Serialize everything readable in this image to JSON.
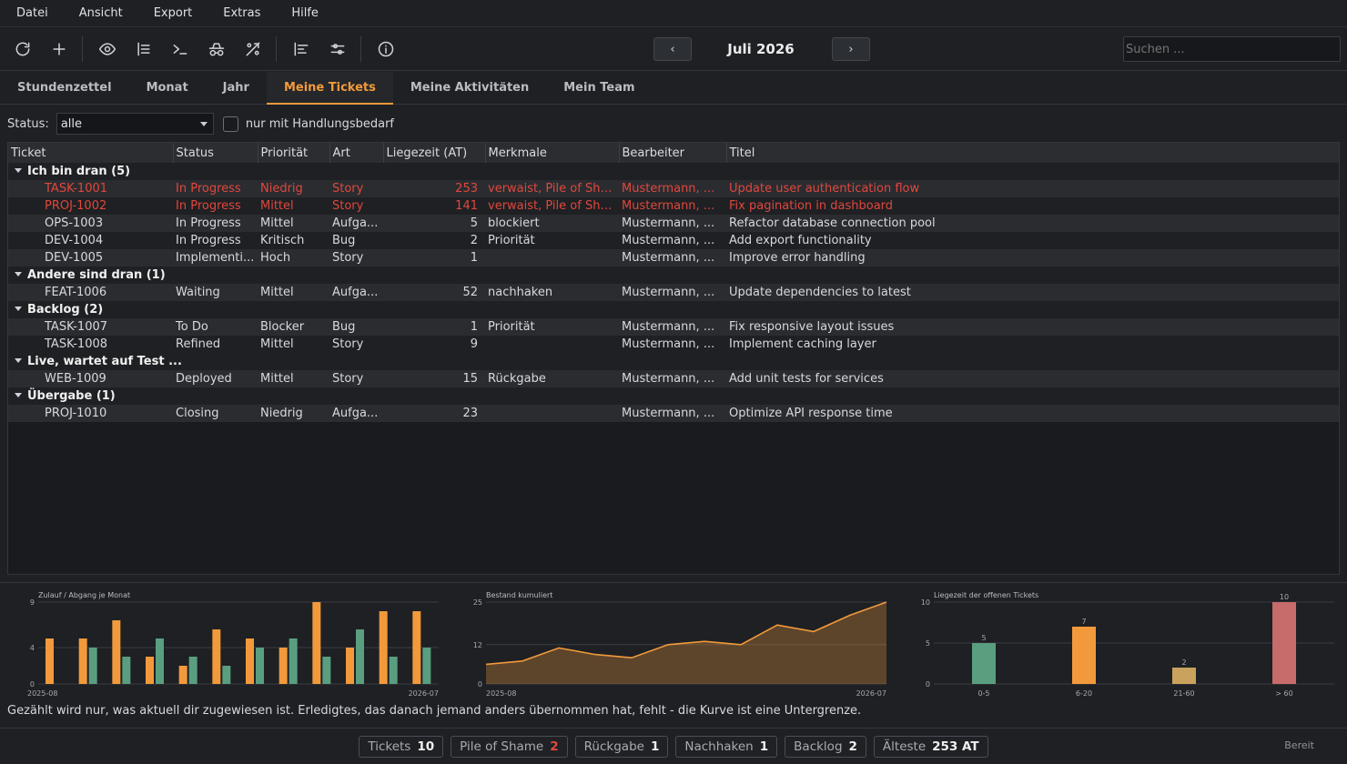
{
  "menu": [
    "Datei",
    "Ansicht",
    "Export",
    "Extras",
    "Hilfe"
  ],
  "toolbar_icons": [
    "refresh-icon",
    "plus-icon",
    "eye-icon",
    "list-icon",
    "terminal-icon",
    "incognito-icon",
    "no-sync-icon",
    "align-left-icon",
    "sliders-icon",
    "info-icon"
  ],
  "nav": {
    "prev": "‹",
    "next": "›",
    "month": "Juli 2026"
  },
  "search": {
    "placeholder": "Suchen ..."
  },
  "tabs": [
    "Stundenzettel",
    "Monat",
    "Jahr",
    "Meine Tickets",
    "Meine Aktivitäten",
    "Mein Team"
  ],
  "active_tab": "Meine Tickets",
  "filter": {
    "label": "Status:",
    "value": "alle",
    "checkbox_label": "nur mit Handlungsbedarf"
  },
  "columns": [
    "Ticket",
    "Status",
    "Priorität",
    "Art",
    "Liegezeit (AT)",
    "Merkmale",
    "Bearbeiter",
    "Titel"
  ],
  "groups": [
    {
      "title": "Ich bin dran  (5)",
      "rows": [
        {
          "ticket": "TASK-1001",
          "status": "In Progress",
          "prio": "Niedrig",
          "art": "Story",
          "age": "253",
          "merkmale": "verwaist, Pile of Sha...",
          "bearbeiter": "Mustermann, ...",
          "titel": "Update user authentication flow",
          "red": true
        },
        {
          "ticket": "PROJ-1002",
          "status": "In Progress",
          "prio": "Mittel",
          "art": "Story",
          "age": "141",
          "merkmale": "verwaist, Pile of Sha...",
          "bearbeiter": "Mustermann, ...",
          "titel": "Fix pagination in dashboard",
          "red": true
        },
        {
          "ticket": "OPS-1003",
          "status": "In Progress",
          "prio": "Mittel",
          "art": "Aufga...",
          "age": "5",
          "merkmale": "blockiert",
          "bearbeiter": "Mustermann, ...",
          "titel": "Refactor database connection pool",
          "red": false
        },
        {
          "ticket": "DEV-1004",
          "status": "In Progress",
          "prio": "Kritisch",
          "art": "Bug",
          "age": "2",
          "merkmale": "Priorität",
          "bearbeiter": "Mustermann, ...",
          "titel": "Add export functionality",
          "red": false
        },
        {
          "ticket": "DEV-1005",
          "status": "Implementi...",
          "prio": "Hoch",
          "art": "Story",
          "age": "1",
          "merkmale": "",
          "bearbeiter": "Mustermann, ...",
          "titel": "Improve error handling",
          "red": false
        }
      ]
    },
    {
      "title": "Andere sind dran  (1)",
      "rows": [
        {
          "ticket": "FEAT-1006",
          "status": "Waiting",
          "prio": "Mittel",
          "art": "Aufga...",
          "age": "52",
          "merkmale": "nachhaken",
          "bearbeiter": "Mustermann, ...",
          "titel": "Update dependencies to latest",
          "red": false
        }
      ]
    },
    {
      "title": "Backlog  (2)",
      "rows": [
        {
          "ticket": "TASK-1007",
          "status": "To Do",
          "prio": "Blocker",
          "art": "Bug",
          "age": "1",
          "merkmale": "Priorität",
          "bearbeiter": "Mustermann, ...",
          "titel": "Fix responsive layout issues",
          "red": false
        },
        {
          "ticket": "TASK-1008",
          "status": "Refined",
          "prio": "Mittel",
          "art": "Story",
          "age": "9",
          "merkmale": "",
          "bearbeiter": "Mustermann, ...",
          "titel": "Implement caching layer",
          "red": false
        }
      ]
    },
    {
      "title": "Live, wartet auf Test ...",
      "rows": [
        {
          "ticket": "WEB-1009",
          "status": "Deployed",
          "prio": "Mittel",
          "art": "Story",
          "age": "15",
          "merkmale": "Rückgabe",
          "bearbeiter": "Mustermann, ...",
          "titel": "Add unit tests for services",
          "red": false
        }
      ]
    },
    {
      "title": "Übergabe  (1)",
      "rows": [
        {
          "ticket": "PROJ-1010",
          "status": "Closing",
          "prio": "Niedrig",
          "art": "Aufga...",
          "age": "23",
          "merkmale": "",
          "bearbeiter": "Mustermann, ...",
          "titel": "Optimize API response time",
          "red": false
        }
      ]
    }
  ],
  "colors": {
    "accent": "#f29a3b",
    "red": "#e0473d",
    "green": "#5a9e80",
    "tan": "#c9a35d",
    "rose": "#c76b6b"
  },
  "chart_data": [
    {
      "type": "bar",
      "title": "Zulauf / Abgang je Monat",
      "x_labels": [
        "2025-08",
        "2026-07"
      ],
      "ylim": [
        0,
        9
      ],
      "yticks": [
        0,
        4,
        9
      ],
      "series": [
        {
          "values": [
            5,
            5,
            7,
            3,
            2,
            6,
            5,
            4,
            9,
            4,
            8,
            8
          ]
        },
        {
          "values": [
            0,
            4,
            3,
            5,
            3,
            2,
            4,
            5,
            3,
            6,
            3,
            4
          ]
        }
      ]
    },
    {
      "type": "area",
      "title": "Bestand kumuliert",
      "x_labels": [
        "2025-08",
        "2026-07"
      ],
      "ylim": [
        0,
        25
      ],
      "yticks": [
        0,
        12,
        25
      ],
      "values": [
        6,
        7,
        11,
        9,
        8,
        12,
        13,
        12,
        18,
        16,
        21,
        25
      ]
    },
    {
      "type": "bar",
      "title": "Liegezeit der offenen Tickets",
      "categories": [
        "0-5",
        "6-20",
        "21-60",
        "> 60"
      ],
      "values": [
        5,
        7,
        2,
        10
      ],
      "ylim": [
        0,
        10
      ],
      "yticks": [
        0,
        5,
        10
      ]
    }
  ],
  "note": "Gezählt wird nur, was aktuell dir zugewiesen ist. Erledigtes, das danach jemand anders übernommen hat, fehlt - die Kurve ist eine Untergrenze.",
  "status_pills": [
    {
      "label": "Tickets",
      "value": "10",
      "red": false
    },
    {
      "label": "Pile of Shame",
      "value": "2",
      "red": true
    },
    {
      "label": "Rückgabe",
      "value": "1",
      "red": false
    },
    {
      "label": "Nachhaken",
      "value": "1",
      "red": false
    },
    {
      "label": "Backlog",
      "value": "2",
      "red": false
    },
    {
      "label": "Älteste",
      "value": "253 AT",
      "red": false
    }
  ],
  "status_text": "Bereit"
}
